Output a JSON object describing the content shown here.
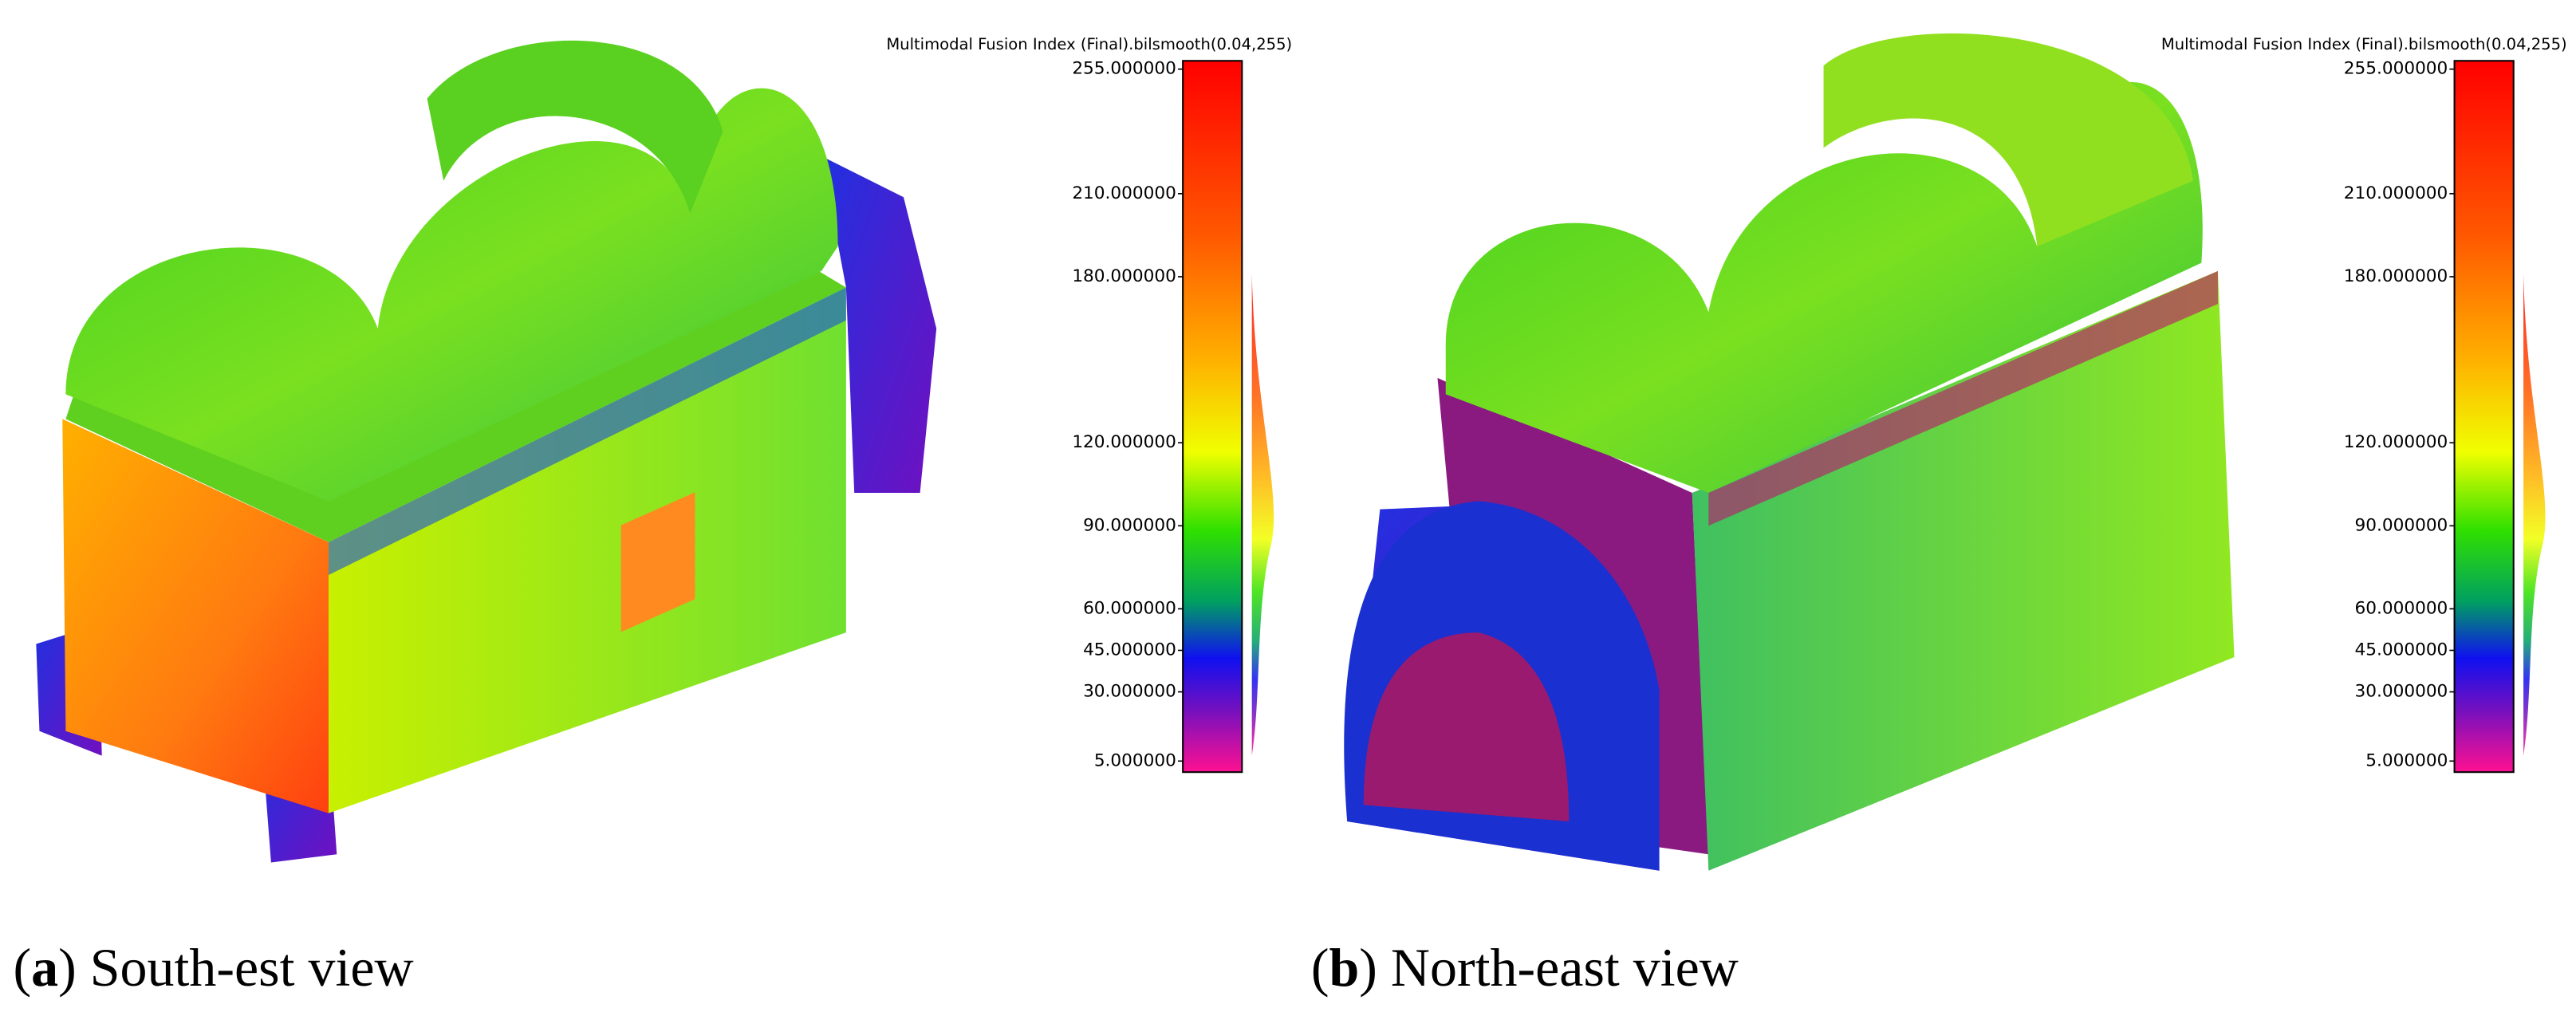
{
  "panels": [
    {
      "caption": [
        "(",
        "a",
        ") South-est view"
      ],
      "colorbar": {
        "title": "Multimodal Fusion Index (Final).bilsmooth(0.04,255)",
        "ylim": [
          1,
          258
        ],
        "ticks": [
          {
            "value": 255,
            "label": "255.000000"
          },
          {
            "value": 210,
            "label": "210.000000"
          },
          {
            "value": 180,
            "label": "180.000000"
          },
          {
            "value": 120,
            "label": "120.000000"
          },
          {
            "value": 90,
            "label": "90.000000"
          },
          {
            "value": 60,
            "label": "60.000000"
          },
          {
            "value": 45,
            "label": "45.000000"
          },
          {
            "value": 30,
            "label": "30.000000"
          },
          {
            "value": 5,
            "label": "5.000000"
          }
        ]
      }
    },
    {
      "caption": [
        "(",
        "b",
        ") North-east view"
      ],
      "colorbar": {
        "title": "Multimodal Fusion Index (Final).bilsmooth(0.04,255)",
        "ylim": [
          1,
          258
        ],
        "ticks": [
          {
            "value": 255,
            "label": "255.000000"
          },
          {
            "value": 210,
            "label": "210.000000"
          },
          {
            "value": 180,
            "label": "180.000000"
          },
          {
            "value": 120,
            "label": "120.000000"
          },
          {
            "value": 90,
            "label": "90.000000"
          },
          {
            "value": 60,
            "label": "60.000000"
          },
          {
            "value": 45,
            "label": "45.000000"
          },
          {
            "value": 30,
            "label": "30.000000"
          },
          {
            "value": 5,
            "label": "5.000000"
          }
        ]
      }
    }
  ]
}
